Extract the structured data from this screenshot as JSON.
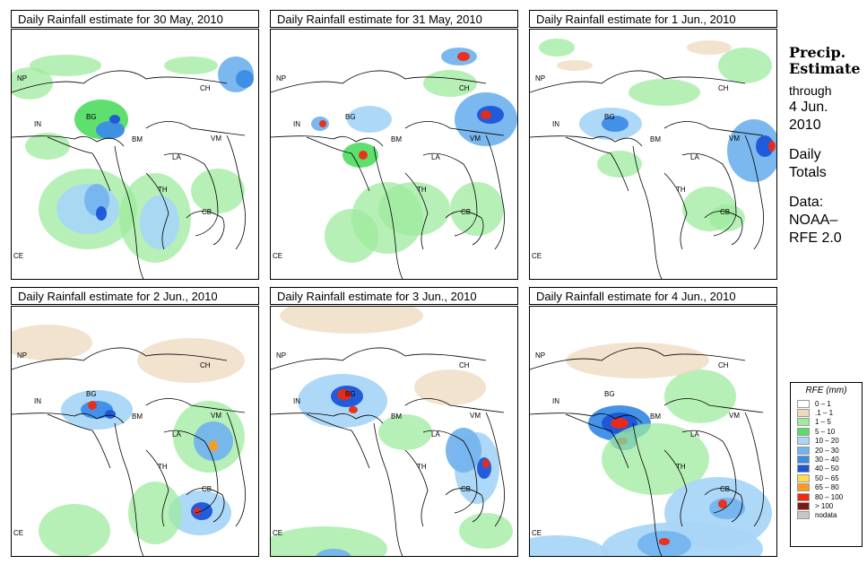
{
  "panels": [
    {
      "title": "Daily Rainfall estimate for  30 May, 2010"
    },
    {
      "title": "Daily Rainfall estimate for  31 May, 2010"
    },
    {
      "title": "Daily Rainfall estimate for  1 Jun., 2010"
    },
    {
      "title": "Daily Rainfall estimate for  2 Jun., 2010"
    },
    {
      "title": "Daily Rainfall estimate for  3 Jun., 2010"
    },
    {
      "title": "Daily Rainfall estimate for  4 Jun., 2010"
    }
  ],
  "country_labels": {
    "np": "NP",
    "ch": "CH",
    "in": "IN",
    "bg": "BG",
    "bm": "BM",
    "vm": "VM",
    "la": "LA",
    "th": "TH",
    "cb": "CB",
    "ce": "CE"
  },
  "side": {
    "title_line1": "Precip.",
    "title_line2": "Estimate",
    "through": "through",
    "date_line1": "4 Jun.",
    "date_line2": "2010",
    "daily_line1": "Daily",
    "daily_line2": "Totals",
    "data_line1": "Data:",
    "data_line2": "NOAA–",
    "data_line3": "RFE 2.0"
  },
  "legend": {
    "title": "RFE (mm)",
    "items": [
      {
        "label": "0 – 1",
        "color": "#ffffff"
      },
      {
        "label": ".1 – 1",
        "color": "#eed9bf"
      },
      {
        "label": "1 – 5",
        "color": "#9eeb9e"
      },
      {
        "label": "5 – 10",
        "color": "#55dd66"
      },
      {
        "label": "10 – 20",
        "color": "#a9d6f7"
      },
      {
        "label": "20 – 30",
        "color": "#74b4ee"
      },
      {
        "label": "30 – 40",
        "color": "#3c8ce6"
      },
      {
        "label": "40 – 50",
        "color": "#1b55d8"
      },
      {
        "label": "50 – 65",
        "color": "#ffdc55"
      },
      {
        "label": "65 – 80",
        "color": "#ff9a1e"
      },
      {
        "label": "80 – 100",
        "color": "#ee2a12"
      },
      {
        "label": "> 100",
        "color": "#7a1a14"
      },
      {
        "label": "nodata",
        "color": "#c8c8c8"
      }
    ]
  }
}
